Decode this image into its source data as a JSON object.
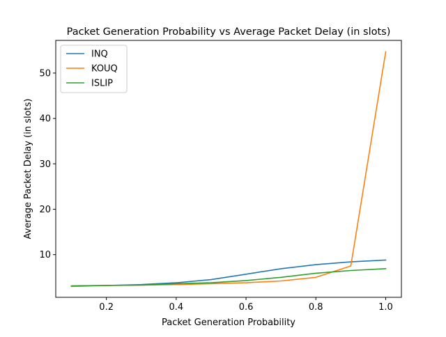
{
  "chart_data": {
    "type": "line",
    "title": "Packet Generation Probability vs Average Packet Delay (in slots)",
    "xlabel": "Packet Generation Probability",
    "ylabel": "Average Packet Delay (in slots)",
    "xlim": [
      0.055,
      1.045
    ],
    "ylim": [
      0.6,
      57.2
    ],
    "xticks": [
      0.2,
      0.4,
      0.6,
      0.8,
      1.0
    ],
    "xtick_labels": [
      "0.2",
      "0.4",
      "0.6",
      "0.8",
      "1.0"
    ],
    "yticks": [
      10,
      20,
      30,
      40,
      50
    ],
    "ytick_labels": [
      "10",
      "20",
      "30",
      "40",
      "50"
    ],
    "grid": false,
    "legend_position": "upper-left",
    "x": [
      0.1,
      0.2,
      0.3,
      0.4,
      0.5,
      0.6,
      0.7,
      0.8,
      0.9,
      1.0
    ],
    "series": [
      {
        "name": "INQ",
        "color": "#1f77b4",
        "values": [
          3.1,
          3.2,
          3.4,
          3.8,
          4.5,
          5.7,
          6.9,
          7.8,
          8.4,
          8.8
        ]
      },
      {
        "name": "KOUQ",
        "color": "#ff7f0e",
        "values": [
          3.0,
          3.2,
          3.3,
          3.4,
          3.6,
          3.8,
          4.2,
          5.0,
          7.5,
          54.7
        ]
      },
      {
        "name": "ISLIP",
        "color": "#2ca02c",
        "values": [
          3.1,
          3.2,
          3.3,
          3.6,
          3.8,
          4.3,
          5.0,
          5.9,
          6.5,
          6.9
        ]
      }
    ]
  }
}
